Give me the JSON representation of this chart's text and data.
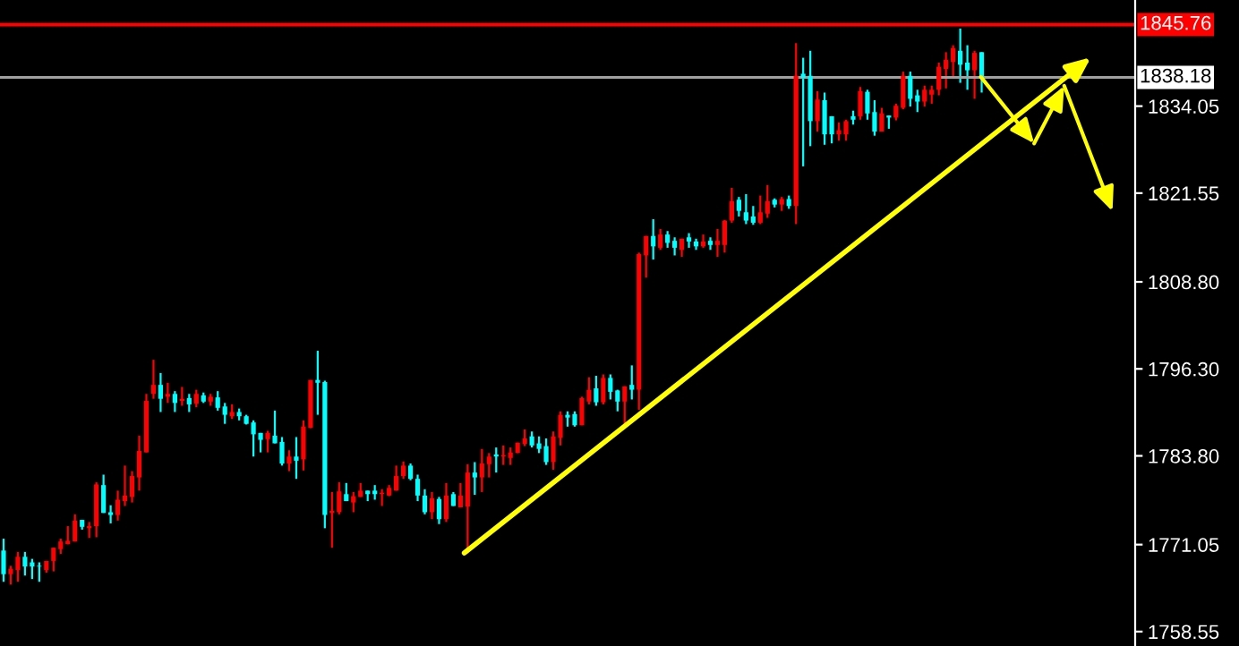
{
  "chart_data": {
    "type": "candlestick",
    "categories": [
      null,
      null,
      null,
      null,
      null,
      null,
      null,
      null,
      null,
      null,
      null,
      null,
      null,
      null,
      null,
      null,
      null,
      null,
      null,
      null,
      null,
      null,
      null,
      null,
      null,
      null,
      null,
      null,
      null,
      null,
      null,
      null,
      null,
      null,
      null,
      null,
      null,
      null,
      null,
      null,
      null,
      null,
      null,
      null,
      null,
      null,
      null,
      null,
      null,
      null,
      null,
      null,
      null,
      null,
      null,
      null,
      null,
      null,
      null,
      null,
      null,
      null,
      null,
      null,
      null,
      null,
      null,
      null,
      null,
      null,
      null,
      null,
      null,
      null,
      null,
      null,
      null,
      null,
      null,
      null,
      null,
      null,
      null,
      null,
      null,
      null,
      null,
      null,
      null,
      null,
      null,
      null,
      null,
      null,
      null,
      null,
      null,
      null,
      null,
      null,
      null,
      null,
      null,
      null,
      null,
      null,
      null,
      null,
      null,
      null,
      null,
      null,
      null,
      null,
      null,
      null,
      null,
      null,
      null,
      null,
      null,
      null,
      null,
      null,
      null,
      null,
      null,
      null,
      null,
      null,
      null,
      null,
      null,
      null,
      null,
      null,
      null,
      null,
      null,
      null,
      null,
      null,
      null,
      null,
      null,
      null,
      null,
      null,
      null,
      null,
      null,
      null,
      null,
      null,
      null,
      null,
      null,
      null,
      null
    ],
    "ohlc": [
      [
        1770.2,
        1771.9,
        1765.7,
        1766.8
      ],
      [
        1766.8,
        1768.0,
        1765.3,
        1767.6
      ],
      [
        1767.4,
        1770.0,
        1765.7,
        1769.3
      ],
      [
        1769.3,
        1770.0,
        1766.6,
        1767.9
      ],
      [
        1768.5,
        1769.0,
        1766.1,
        1767.9
      ],
      [
        1768.0,
        1768.5,
        1765.7,
        1767.9
      ],
      [
        1767.4,
        1768.7,
        1767.0,
        1768.7
      ],
      [
        1768.7,
        1770.6,
        1767.2,
        1770.6
      ],
      [
        1770.4,
        1771.9,
        1769.7,
        1771.5
      ],
      [
        1771.1,
        1773.7,
        1771.1,
        1771.6
      ],
      [
        1771.5,
        1775.4,
        1771.5,
        1774.5
      ],
      [
        1774.6,
        1774.6,
        1773.2,
        1773.6
      ],
      [
        1773.4,
        1774.3,
        1772.0,
        1773.7
      ],
      [
        1773.7,
        1780.0,
        1772.1,
        1779.7
      ],
      [
        1779.6,
        1781.1,
        1775.6,
        1775.6
      ],
      [
        1775.7,
        1776.7,
        1774.1,
        1775.3
      ],
      [
        1775.3,
        1778.8,
        1774.5,
        1777.5
      ],
      [
        1777.3,
        1782.4,
        1776.6,
        1778.1
      ],
      [
        1777.9,
        1781.6,
        1777.1,
        1780.9
      ],
      [
        1780.7,
        1786.7,
        1778.8,
        1784.5
      ],
      [
        1784.3,
        1792.7,
        1784.3,
        1791.7
      ],
      [
        1792.7,
        1797.6,
        1792.0,
        1794.0
      ],
      [
        1794.0,
        1795.7,
        1790.1,
        1792.0
      ],
      [
        1792.3,
        1794.3,
        1791.4,
        1792.7
      ],
      [
        1792.7,
        1793.1,
        1790.1,
        1791.4
      ],
      [
        1791.7,
        1793.7,
        1791.0,
        1792.0
      ],
      [
        1792.1,
        1792.7,
        1790.1,
        1791.2
      ],
      [
        1791.3,
        1793.3,
        1790.8,
        1792.7
      ],
      [
        1792.5,
        1792.9,
        1791.4,
        1791.6
      ],
      [
        1791.6,
        1792.7,
        1791.0,
        1792.3
      ],
      [
        1792.2,
        1793.1,
        1790.3,
        1790.7
      ],
      [
        1790.9,
        1791.4,
        1788.4,
        1789.7
      ],
      [
        1789.5,
        1791.2,
        1789.1,
        1790.1
      ],
      [
        1790.1,
        1790.6,
        1788.9,
        1789.5
      ],
      [
        1789.5,
        1789.7,
        1788.3,
        1788.4
      ],
      [
        1788.6,
        1788.9,
        1783.7,
        1786.9
      ],
      [
        1787.1,
        1787.1,
        1784.3,
        1786.1
      ],
      [
        1786.2,
        1787.4,
        1784.3,
        1787.1
      ],
      [
        1786.7,
        1790.3,
        1785.6,
        1785.6
      ],
      [
        1785.8,
        1786.5,
        1782.4,
        1782.7
      ],
      [
        1782.7,
        1784.6,
        1781.6,
        1783.7
      ],
      [
        1783.7,
        1786.5,
        1780.5,
        1783.1
      ],
      [
        1783.3,
        1788.9,
        1781.7,
        1788.0
      ],
      [
        1787.8,
        1794.7,
        1787.8,
        1794.7
      ],
      [
        1794.7,
        1798.9,
        1789.7,
        1794.3
      ],
      [
        1794.4,
        1794.6,
        1773.4,
        1775.3
      ],
      [
        1775.6,
        1778.6,
        1770.6,
        1775.9
      ],
      [
        1775.7,
        1780.0,
        1775.4,
        1778.7
      ],
      [
        1778.3,
        1779.9,
        1777.3,
        1777.3
      ],
      [
        1777.1,
        1778.6,
        1775.7,
        1778.0
      ],
      [
        1777.9,
        1779.9,
        1777.9,
        1778.8
      ],
      [
        1778.8,
        1778.8,
        1777.3,
        1778.3
      ],
      [
        1778.8,
        1779.6,
        1777.5,
        1778.3
      ],
      [
        1778.3,
        1779.0,
        1776.6,
        1778.5
      ],
      [
        1778.1,
        1779.6,
        1778.0,
        1779.2
      ],
      [
        1778.8,
        1782.4,
        1778.8,
        1780.9
      ],
      [
        1780.9,
        1783.0,
        1780.5,
        1782.4
      ],
      [
        1782.4,
        1782.7,
        1780.3,
        1780.5
      ],
      [
        1780.5,
        1781.1,
        1777.3,
        1778.1
      ],
      [
        1778.1,
        1779.0,
        1775.4,
        1775.7
      ],
      [
        1775.7,
        1778.6,
        1774.7,
        1777.7
      ],
      [
        1777.6,
        1777.9,
        1774.0,
        1774.7
      ],
      [
        1774.7,
        1779.9,
        1774.3,
        1778.1
      ],
      [
        1778.3,
        1778.6,
        1776.6,
        1776.6
      ],
      [
        1776.4,
        1779.9,
        1776.4,
        1778.1
      ],
      [
        1776.5,
        1782.6,
        1769.8,
        1781.4
      ],
      [
        1781.4,
        1782.9,
        1778.2,
        1780.7
      ],
      [
        1780.7,
        1784.8,
        1778.6,
        1782.7
      ],
      [
        1782.6,
        1784.2,
        1780.7,
        1783.7
      ],
      [
        1784.0,
        1785.0,
        1781.4,
        1783.7
      ],
      [
        1783.7,
        1785.3,
        1782.5,
        1783.9
      ],
      [
        1783.5,
        1785.0,
        1782.5,
        1784.3
      ],
      [
        1784.2,
        1785.7,
        1784.2,
        1785.7
      ],
      [
        1785.5,
        1787.6,
        1785.2,
        1786.3
      ],
      [
        1786.6,
        1787.3,
        1785.0,
        1785.3
      ],
      [
        1785.6,
        1786.6,
        1784.2,
        1784.8
      ],
      [
        1785.2,
        1786.3,
        1782.5,
        1782.9
      ],
      [
        1782.9,
        1787.3,
        1781.8,
        1786.6
      ],
      [
        1786.4,
        1790.2,
        1785.3,
        1789.7
      ],
      [
        1789.7,
        1790.2,
        1788.0,
        1789.3
      ],
      [
        1789.8,
        1790.2,
        1788.0,
        1788.2
      ],
      [
        1788.2,
        1792.3,
        1788.2,
        1792.1
      ],
      [
        1791.6,
        1795.1,
        1791.2,
        1793.3
      ],
      [
        1793.5,
        1795.3,
        1791.0,
        1791.5
      ],
      [
        1791.5,
        1795.5,
        1791.2,
        1795.0
      ],
      [
        1795.0,
        1795.5,
        1791.9,
        1793.0
      ],
      [
        1793.2,
        1793.3,
        1790.2,
        1791.6
      ],
      [
        1791.6,
        1793.8,
        1788.0,
        1793.8
      ],
      [
        1794.0,
        1796.8,
        1791.9,
        1793.3
      ],
      [
        1793.3,
        1813.0,
        1790.4,
        1812.8
      ],
      [
        1812.6,
        1815.4,
        1809.4,
        1815.4
      ],
      [
        1815.4,
        1817.8,
        1812.0,
        1813.9
      ],
      [
        1813.7,
        1816.4,
        1813.4,
        1815.6
      ],
      [
        1815.6,
        1816.1,
        1813.7,
        1814.4
      ],
      [
        1814.7,
        1815.2,
        1812.6,
        1813.7
      ],
      [
        1813.4,
        1815.0,
        1812.4,
        1815.0
      ],
      [
        1815.2,
        1815.8,
        1813.7,
        1814.6
      ],
      [
        1814.6,
        1815.0,
        1813.4,
        1813.9
      ],
      [
        1813.9,
        1815.6,
        1813.7,
        1814.6
      ],
      [
        1814.7,
        1815.2,
        1813.4,
        1814.1
      ],
      [
        1814.1,
        1816.4,
        1812.4,
        1814.7
      ],
      [
        1814.1,
        1817.7,
        1813.0,
        1817.6
      ],
      [
        1817.6,
        1822.3,
        1817.3,
        1820.4
      ],
      [
        1820.6,
        1821.0,
        1818.2,
        1819.0
      ],
      [
        1818.8,
        1821.4,
        1817.1,
        1817.6
      ],
      [
        1818.2,
        1819.7,
        1817.0,
        1817.3
      ],
      [
        1817.3,
        1821.2,
        1817.1,
        1818.8
      ],
      [
        1818.6,
        1822.7,
        1818.0,
        1820.4
      ],
      [
        1820.6,
        1820.8,
        1819.5,
        1819.9
      ],
      [
        1819.9,
        1821.0,
        1819.0,
        1820.7
      ],
      [
        1820.7,
        1821.2,
        1819.3,
        1819.7
      ],
      [
        1819.7,
        1843.1,
        1817.1,
        1838.4
      ],
      [
        1838.7,
        1841.0,
        1825.4,
        1838.1
      ],
      [
        1838.4,
        1842.0,
        1828.3,
        1831.9
      ],
      [
        1831.9,
        1836.2,
        1830.4,
        1835.0
      ],
      [
        1834.9,
        1836.0,
        1828.5,
        1830.0
      ],
      [
        1832.6,
        1832.6,
        1828.7,
        1830.0
      ],
      [
        1830.0,
        1831.7,
        1829.1,
        1830.6
      ],
      [
        1830.0,
        1832.1,
        1829.1,
        1831.9
      ],
      [
        1832.6,
        1833.4,
        1831.4,
        1832.1
      ],
      [
        1832.6,
        1836.8,
        1832.1,
        1836.2
      ],
      [
        1836.1,
        1836.4,
        1832.1,
        1833.0
      ],
      [
        1833.2,
        1834.9,
        1829.8,
        1830.4
      ],
      [
        1830.4,
        1833.8,
        1830.4,
        1833.0
      ],
      [
        1832.7,
        1832.7,
        1830.8,
        1832.4
      ],
      [
        1832.4,
        1834.4,
        1832.0,
        1834.1
      ],
      [
        1833.8,
        1839.0,
        1833.6,
        1838.4
      ],
      [
        1838.4,
        1839.0,
        1834.0,
        1835.1
      ],
      [
        1835.6,
        1836.4,
        1833.2,
        1834.7
      ],
      [
        1834.7,
        1837.0,
        1834.0,
        1836.4
      ],
      [
        1835.7,
        1837.0,
        1834.4,
        1836.4
      ],
      [
        1836.4,
        1840.3,
        1835.6,
        1839.7
      ],
      [
        1839.4,
        1841.8,
        1836.6,
        1840.7
      ],
      [
        1840.4,
        1842.8,
        1838.1,
        1842.4
      ],
      [
        1842.0,
        1845.2,
        1837.4,
        1840.0
      ],
      [
        1840.3,
        1842.8,
        1836.4,
        1839.2
      ],
      [
        1839.2,
        1842.0,
        1835.1,
        1841.7
      ],
      [
        1841.8,
        1841.8,
        1836.0,
        1838.1
      ],
      null,
      null,
      null,
      null,
      null,
      null,
      null,
      null,
      null,
      null,
      null,
      null,
      null,
      null,
      null,
      null,
      null,
      null,
      null,
      null,
      null
    ],
    "colors": [
      "#00ffff",
      "#ff0000",
      "#ff0000",
      "#00ffff",
      "#00ffff",
      "#00ffff",
      "#ff0000",
      "#ff0000",
      "#ff0000",
      "#ff0000",
      "#ff0000",
      "#00ffff",
      "#ff0000",
      "#ff0000",
      "#00ffff",
      "#00ffff",
      "#ff0000",
      "#ff0000",
      "#ff0000",
      "#ff0000",
      "#ff0000",
      "#ff0000",
      "#00ffff",
      "#ff0000",
      "#00ffff",
      "#ff0000",
      "#00ffff",
      "#ff0000",
      "#00ffff",
      "#ff0000",
      "#00ffff",
      "#00ffff",
      "#ff0000",
      "#00ffff",
      "#00ffff",
      "#00ffff",
      "#00ffff",
      "#ff0000",
      "#00ffff",
      "#00ffff",
      "#ff0000",
      "#00ffff",
      "#ff0000",
      "#ff0000",
      "#00ffff",
      "#00ffff",
      "#ff0000",
      "#ff0000",
      "#00ffff",
      "#ff0000",
      "#ff0000",
      "#00ffff",
      "#00ffff",
      "#ff0000",
      "#ff0000",
      "#ff0000",
      "#ff0000",
      "#00ffff",
      "#00ffff",
      "#00ffff",
      "#ff0000",
      "#00ffff",
      "#ff0000",
      "#00ffff",
      "#ff0000",
      "#ff0000",
      "#00ffff",
      "#ff0000",
      "#ff0000",
      "#00ffff",
      "#ff0000",
      "#ff0000",
      "#ff0000",
      "#ff0000",
      "#00ffff",
      "#00ffff",
      "#00ffff",
      "#ff0000",
      "#ff0000",
      "#00ffff",
      "#00ffff",
      "#ff0000",
      "#ff0000",
      "#00ffff",
      "#ff0000",
      "#00ffff",
      "#00ffff",
      "#ff0000",
      "#00ffff",
      "#ff0000",
      "#ff0000",
      "#00ffff",
      "#ff0000",
      "#00ffff",
      "#00ffff",
      "#ff0000",
      "#00ffff",
      "#00ffff",
      "#ff0000",
      "#00ffff",
      "#ff0000",
      "#ff0000",
      "#ff0000",
      "#00ffff",
      "#00ffff",
      "#00ffff",
      "#ff0000",
      "#ff0000",
      "#00ffff",
      "#ff0000",
      "#00ffff",
      "#ff0000",
      "#00ffff",
      "#00ffff",
      "#ff0000",
      "#00ffff",
      "#00ffff",
      "#ff0000",
      "#ff0000",
      "#00ffff",
      "#ff0000",
      "#00ffff",
      "#00ffff",
      "#ff0000",
      "#00ffff",
      "#ff0000",
      "#ff0000",
      "#00ffff",
      "#00ffff",
      "#ff0000",
      "#ff0000",
      "#ff0000",
      "#ff0000",
      "#ff0000",
      "#00ffff",
      "#00ffff",
      "#ff0000",
      "#00ffff",
      null,
      null,
      null,
      null,
      null,
      null,
      null,
      null,
      null,
      null,
      null,
      null,
      null,
      null,
      null,
      null,
      null,
      null,
      null,
      null,
      null
    ],
    "ylim": [
      1756.48,
      1849.3
    ],
    "yticks": [
      {
        "value": 1758.55,
        "label": "1758.55"
      },
      {
        "value": 1771.05,
        "label": "1771.05"
      },
      {
        "value": 1783.8,
        "label": "1783.80"
      },
      {
        "value": 1796.3,
        "label": "1796.30"
      },
      {
        "value": 1808.8,
        "label": "1808.80"
      },
      {
        "value": 1821.55,
        "label": "1821.55"
      },
      {
        "value": 1834.05,
        "label": "1834.05"
      }
    ],
    "ref_lines": [
      {
        "axis": "y",
        "value": 1845.76,
        "label": "1845.76",
        "color": "#ff0000"
      },
      {
        "axis": "y",
        "value": 1838.18,
        "label": "1838.18",
        "color": "#a0a0a0"
      }
    ],
    "tick_labels": "y"
  }
}
